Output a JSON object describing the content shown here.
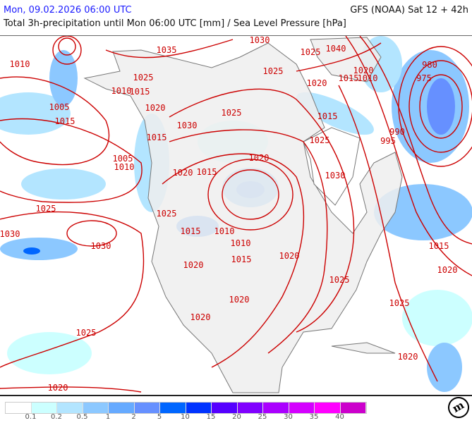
{
  "header": {
    "valid_time": "Mon, 09.02.2026 06:00 UTC",
    "model_run": "GFS (NOAA) Sat 12 + 42h",
    "title": "Total 3h-precipitation until Mon 06:00 UTC [mm] / Sea Level Pressure [hPa]"
  },
  "colors": {
    "isobar": "#cc0000",
    "land": "#eeeeee",
    "coastline": "#777777",
    "date_text": "#1a1aff"
  },
  "legend": {
    "unit": "mm",
    "colors": [
      "#ffffff",
      "#ccffff",
      "#b3e5ff",
      "#8cc8ff",
      "#66aaff",
      "#6690ff",
      "#0066ff",
      "#0033ff",
      "#5500ff",
      "#8000ff",
      "#aa00ff",
      "#d400ff",
      "#ff00ff",
      "#cc00cc"
    ],
    "ticks": [
      "0.1",
      "0.2",
      "0.5",
      "1",
      "2",
      "5",
      "10",
      "15",
      "20",
      "25",
      "30",
      "35",
      "40"
    ]
  },
  "isobar_labels": [
    "1030",
    "1035",
    "1040",
    "1025",
    "1010",
    "1025",
    "1025",
    "1020",
    "1015",
    "1010",
    "980",
    "975",
    "1010",
    "1015",
    "1020",
    "1005",
    "1020",
    "1025",
    "1015",
    "1015",
    "1030",
    "990",
    "995",
    "1015",
    "1025",
    "1005",
    "1010",
    "1020",
    "1015",
    "1020",
    "1030",
    "1025",
    "1025",
    "1015",
    "1010",
    "1030",
    "1030",
    "1010",
    "1015",
    "1015",
    "1020",
    "1020",
    "1020",
    "1025",
    "1020",
    "1025",
    "1020",
    "1025",
    "1020",
    "1020"
  ],
  "logo": "m"
}
